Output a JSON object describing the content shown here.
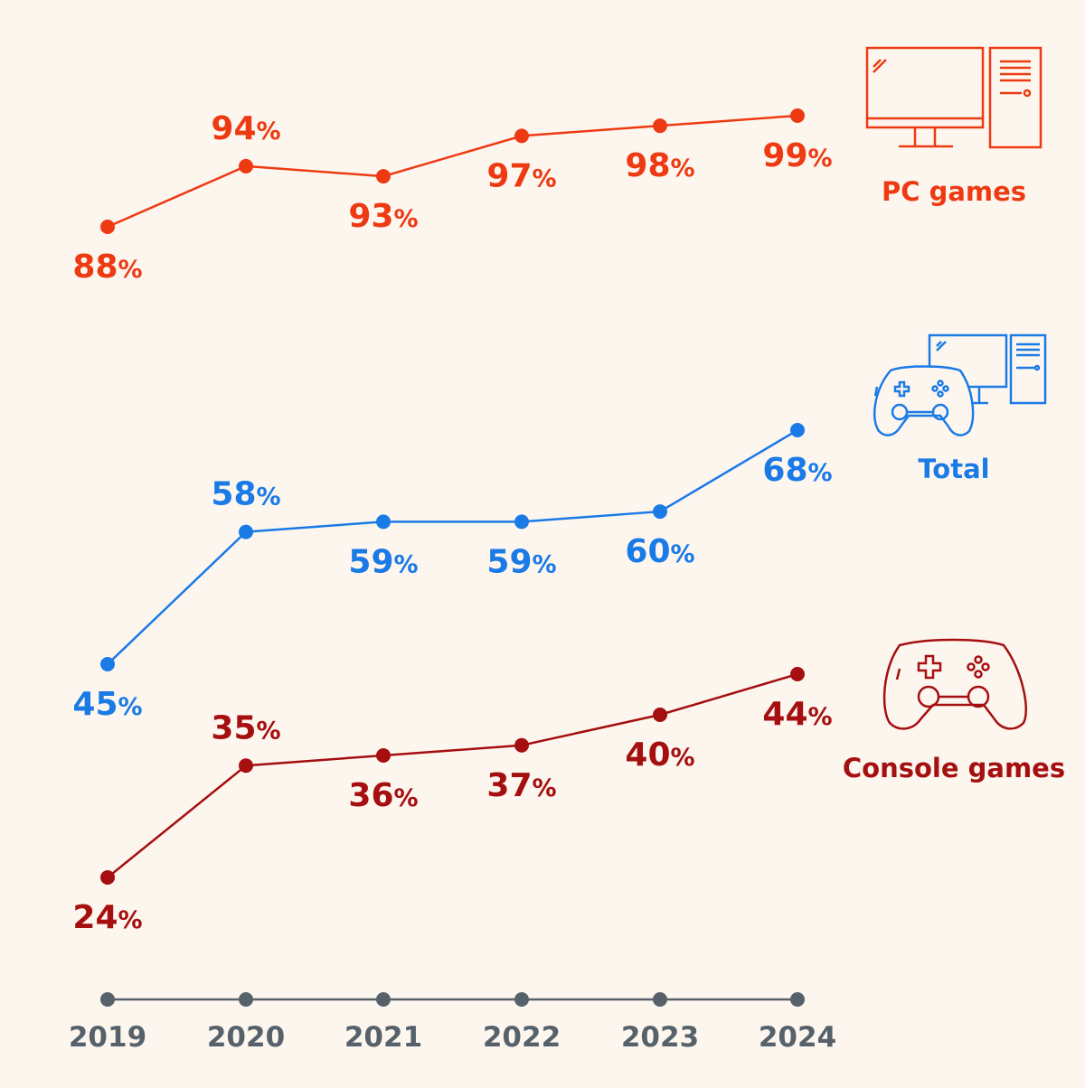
{
  "chart_data": {
    "type": "line",
    "title": "",
    "xlabel": "",
    "ylabel": "",
    "categories": [
      "2019",
      "2020",
      "2021",
      "2022",
      "2023",
      "2024"
    ],
    "value_suffix": "%",
    "series": [
      {
        "name": "PC games",
        "key": "pc",
        "color": "#ee3a12",
        "values": [
          88,
          94,
          93,
          97,
          98,
          99
        ],
        "icon": "pc-icon"
      },
      {
        "name": "Total",
        "key": "total",
        "color": "#1a7ae6",
        "values": [
          45,
          58,
          59,
          59,
          60,
          68
        ],
        "icon": "controller-and-pc-icon"
      },
      {
        "name": "Console games",
        "key": "console",
        "color": "#a50f0f",
        "values": [
          24,
          35,
          36,
          37,
          40,
          44
        ],
        "icon": "controller-icon"
      }
    ],
    "axis_color": "#56616a",
    "grid": false
  }
}
